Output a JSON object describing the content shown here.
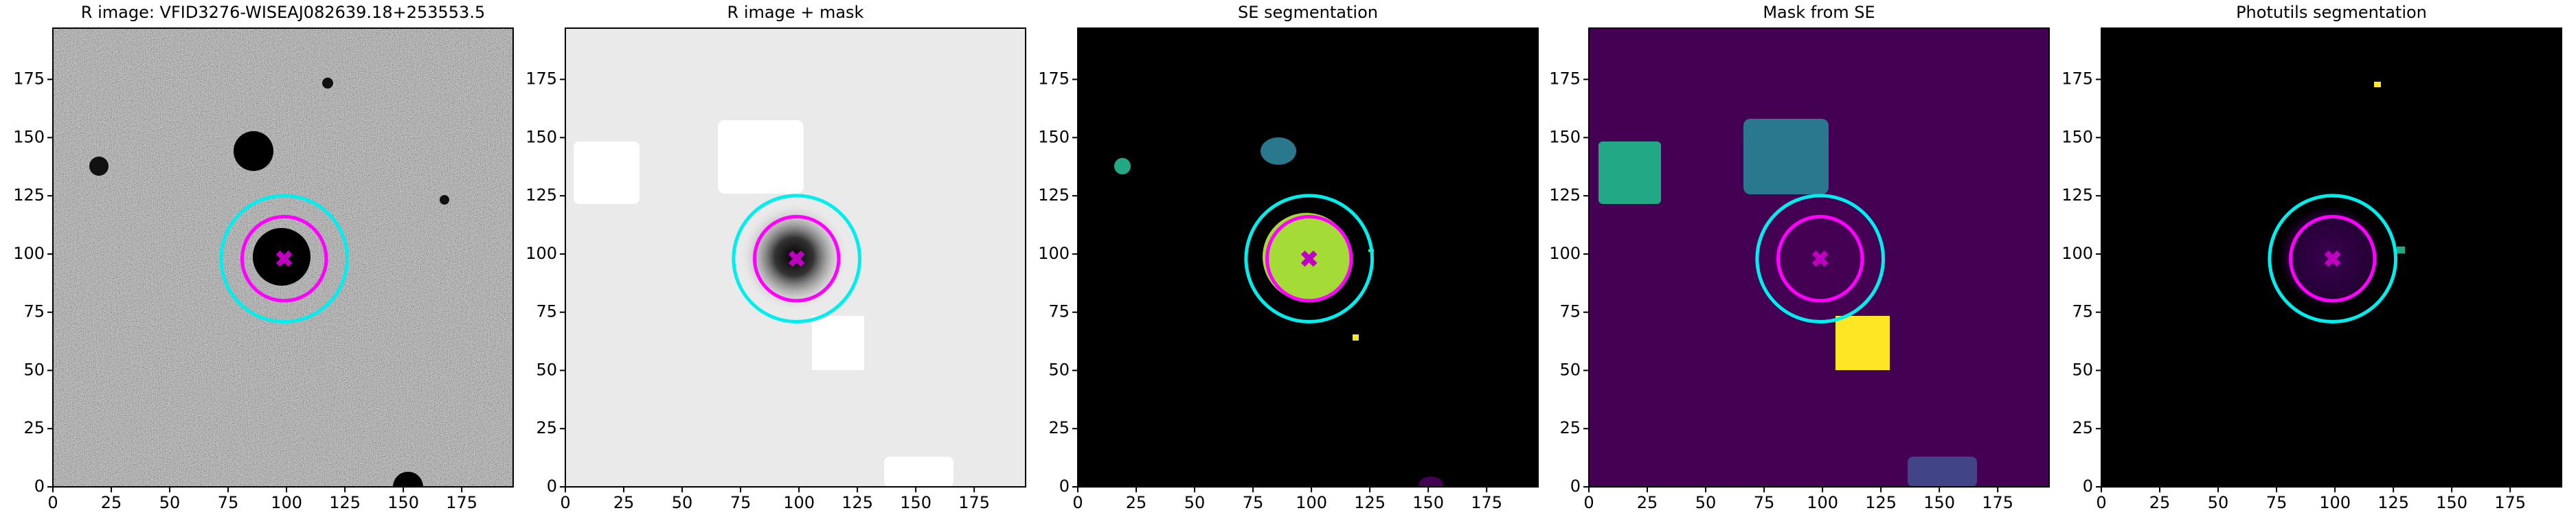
{
  "chart_data": [
    {
      "type": "image",
      "title": "R image: VFID3276-WISEAJ082639.18+253553.5",
      "xlim": [
        0,
        197
      ],
      "ylim": [
        0,
        197
      ],
      "xticks": [
        0,
        25,
        50,
        75,
        100,
        125,
        150,
        175
      ],
      "yticks": [
        0,
        25,
        50,
        75,
        100,
        125,
        150,
        175
      ],
      "center": [
        99,
        98
      ],
      "marker_color": "#c000c0",
      "circles": [
        {
          "color": "#00eeee",
          "radius": 27
        },
        {
          "color": "#ff00ff",
          "radius": 18
        }
      ]
    },
    {
      "type": "image",
      "title": "R image + mask",
      "xlim": [
        0,
        197
      ],
      "ylim": [
        0,
        197
      ],
      "xticks": [
        0,
        25,
        50,
        75,
        100,
        125,
        150,
        175
      ],
      "yticks": [
        0,
        25,
        50,
        75,
        100,
        125,
        150,
        175
      ],
      "center": [
        99,
        98
      ],
      "marker_color": "#c000c0",
      "circles": [
        {
          "color": "#00eeee",
          "radius": 27
        },
        {
          "color": "#ff00ff",
          "radius": 18
        }
      ]
    },
    {
      "type": "image",
      "title": "SE segmentation",
      "xlim": [
        0,
        197
      ],
      "ylim": [
        0,
        197
      ],
      "xticks": [
        0,
        25,
        50,
        75,
        100,
        125,
        150,
        175
      ],
      "yticks": [
        0,
        25,
        50,
        75,
        100,
        125,
        150,
        175
      ],
      "center": [
        99,
        98
      ],
      "marker_color": "#c000c0",
      "circles": [
        {
          "color": "#00eeee",
          "radius": 27
        },
        {
          "color": "#ff00ff",
          "radius": 18
        }
      ]
    },
    {
      "type": "image",
      "title": "Mask from SE",
      "xlim": [
        0,
        197
      ],
      "ylim": [
        0,
        197
      ],
      "xticks": [
        0,
        25,
        50,
        75,
        100,
        125,
        150,
        175
      ],
      "yticks": [
        0,
        25,
        50,
        75,
        100,
        125,
        150,
        175
      ],
      "center": [
        99,
        98
      ],
      "marker_color": "#c000c0",
      "circles": [
        {
          "color": "#00eeee",
          "radius": 27
        },
        {
          "color": "#ff00ff",
          "radius": 18
        }
      ]
    },
    {
      "type": "image",
      "title": "Photutils segmentation",
      "xlim": [
        0,
        197
      ],
      "ylim": [
        0,
        197
      ],
      "xticks": [
        0,
        25,
        50,
        75,
        100,
        125,
        150,
        175
      ],
      "yticks": [
        0,
        25,
        50,
        75,
        100,
        125,
        150,
        175
      ],
      "center": [
        99,
        98
      ],
      "marker_color": "#c000c0",
      "circles": [
        {
          "color": "#00eeee",
          "radius": 27
        },
        {
          "color": "#ff00ff",
          "radius": 18
        }
      ]
    }
  ]
}
